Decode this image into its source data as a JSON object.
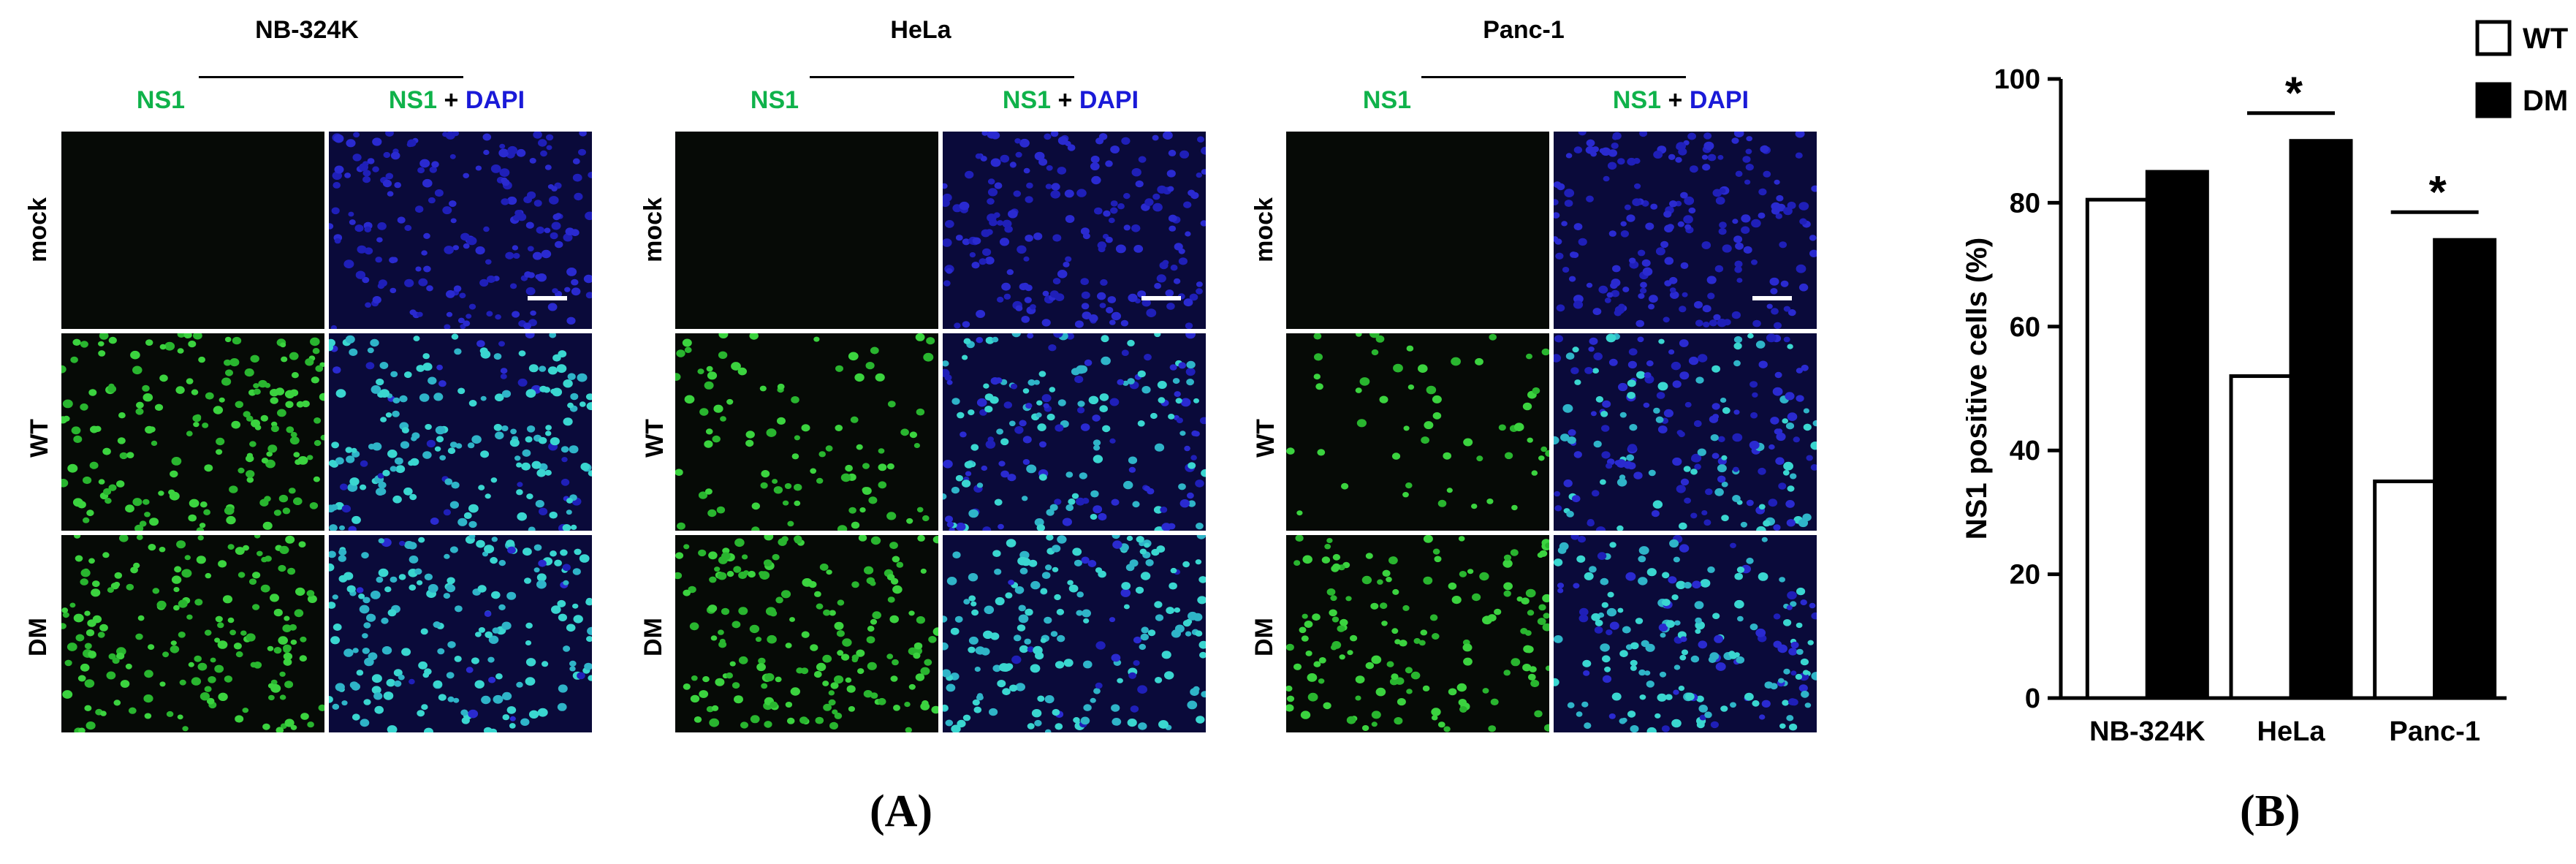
{
  "panelA": {
    "caption": "(A)",
    "stain_labels": {
      "ns1": "NS1",
      "plus": "+",
      "dapi": "DAPI"
    },
    "row_labels": [
      "mock",
      "WT",
      "DM"
    ],
    "groups": [
      {
        "name": "NB-324K",
        "density": {
          "mock": 0.0,
          "WT": 0.85,
          "DM": 0.9
        }
      },
      {
        "name": "HeLa",
        "density": {
          "mock": 0.0,
          "WT": 0.5,
          "DM": 0.9
        }
      },
      {
        "name": "Panc-1",
        "density": {
          "mock": 0.0,
          "WT": 0.35,
          "DM": 0.74
        }
      }
    ]
  },
  "panelB": {
    "caption": "(B)",
    "legend": [
      {
        "label": "WT",
        "fill": "#ffffff"
      },
      {
        "label": "DM",
        "fill": "#000000"
      }
    ],
    "significance_marker": "*"
  },
  "chart_data": {
    "type": "bar",
    "title": "",
    "xlabel": "",
    "ylabel": "NS1 positive cells (%)",
    "categories": [
      "NB-324K",
      "HeLa",
      "Panc-1"
    ],
    "series": [
      {
        "name": "WT",
        "values": [
          80.5,
          52,
          35
        ],
        "color": "#ffffff"
      },
      {
        "name": "DM",
        "values": [
          85,
          90,
          74
        ],
        "color": "#000000"
      }
    ],
    "ylim": [
      0,
      100
    ],
    "yticks": [
      "0",
      "20",
      "40",
      "60",
      "80",
      "100"
    ],
    "legend_position": "top-right",
    "significance": [
      {
        "category": "HeLa",
        "label": "*"
      },
      {
        "category": "Panc-1",
        "label": "*"
      }
    ]
  }
}
